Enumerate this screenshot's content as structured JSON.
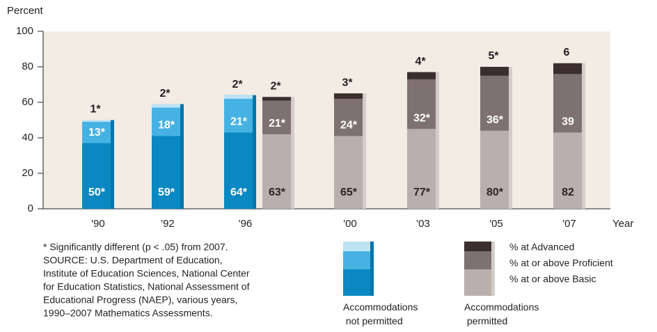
{
  "chart_data": {
    "type": "bar",
    "ylabel": "Percent",
    "xlabel": "Year",
    "categories": [
      "'90",
      "'92",
      "'96",
      null,
      "'00",
      "'03",
      "'05",
      "'07"
    ],
    "accommodations_permitted": [
      false,
      false,
      false,
      true,
      true,
      true,
      true,
      true
    ],
    "series": [
      {
        "name": "% at or above Basic",
        "colors": [
          "#0a88c2",
          "#b9afab"
        ],
        "values": [
          50,
          59,
          64,
          63,
          65,
          77,
          80,
          82
        ],
        "value_labels": [
          "50*",
          "59*",
          "64*",
          "63*",
          "65*",
          "77*",
          "80*",
          "82"
        ]
      },
      {
        "name": "% at or above Proficient",
        "colors": [
          "#45b2e3",
          "#7e7270"
        ],
        "values": [
          13,
          18,
          21,
          21,
          24,
          32,
          36,
          39
        ],
        "value_labels": [
          "13*",
          "18*",
          "21*",
          "21*",
          "24*",
          "32*",
          "36*",
          "39"
        ]
      },
      {
        "name": "% at Advanced",
        "colors": [
          "#bde2f4",
          "#3b2f2d"
        ],
        "values": [
          1,
          2,
          2,
          2,
          3,
          4,
          5,
          6
        ],
        "value_labels": [
          "1*",
          "2*",
          "2*",
          "2*",
          "3*",
          "4*",
          "5*",
          "6"
        ]
      }
    ],
    "ylim": [
      0,
      100
    ],
    "yticks": [
      0,
      20,
      40,
      60,
      80,
      100
    ],
    "footnote": [
      "* Significantly different (p < .05) from 2007.",
      "SOURCE: U.S. Department of Education,",
      "Institute of Education Sciences, National Center",
      "for Education Statistics, National Assessment of",
      "Educational Progress (NAEP), various years,",
      "1990–2007 Mathematics Assessments."
    ],
    "legend_groups": [
      "Accommodations not permitted",
      "Accommodations permitted"
    ]
  }
}
